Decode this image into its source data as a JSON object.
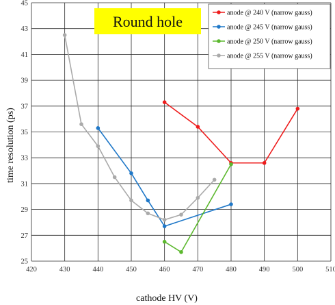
{
  "chart_data": {
    "type": "line",
    "title": "Round hole",
    "xlabel": "cathode HV (V)",
    "ylabel": "time resolution (ps)",
    "xlim": [
      420,
      510
    ],
    "ylim": [
      25,
      45
    ],
    "xticks": [
      420,
      430,
      440,
      450,
      460,
      470,
      480,
      490,
      500,
      510
    ],
    "yticks": [
      25,
      27,
      29,
      31,
      33,
      35,
      37,
      39,
      41,
      43,
      45
    ],
    "grid": true,
    "legend_position": "top-right",
    "title_highlight_color": "#ffff00",
    "series": [
      {
        "name": "anode @ 240 V (narrow gauss)",
        "color": "#ee1c1c",
        "x": [
          460,
          470,
          480,
          490,
          500
        ],
        "y": [
          37.3,
          35.4,
          32.6,
          32.6,
          36.8
        ]
      },
      {
        "name": "anode @ 245 V (narrow gauss)",
        "color": "#1f78c8",
        "x": [
          440,
          450,
          455,
          460,
          480
        ],
        "y": [
          35.3,
          31.8,
          29.7,
          27.7,
          29.4
        ]
      },
      {
        "name": "anode @ 250 V (narrow gauss)",
        "color": "#5cb82e",
        "x": [
          460,
          465,
          480
        ],
        "y": [
          26.5,
          25.7,
          32.5
        ]
      },
      {
        "name": "anode @ 255 V (narrow gauss)",
        "color": "#aaaaaa",
        "x": [
          430,
          435,
          440,
          445,
          450,
          455,
          460,
          465,
          470,
          475
        ],
        "y": [
          42.5,
          35.6,
          33.9,
          31.5,
          29.7,
          28.7,
          28.2,
          28.6,
          29.9,
          31.3
        ]
      }
    ]
  }
}
